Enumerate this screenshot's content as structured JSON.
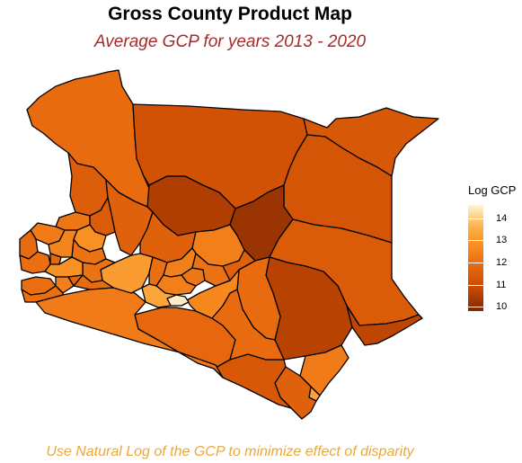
{
  "title": "Gross County Product Map",
  "subtitle": "Average GCP for years 2013 - 2020",
  "caption": "Use Natural Log of the GCP to minimize effect of disparity",
  "legend": {
    "title": "Log GCP",
    "ticks": [
      "14",
      "13",
      "12",
      "11",
      "10"
    ],
    "tick_values": [
      14,
      13,
      12,
      11,
      10
    ],
    "range": [
      9.8,
      14.6
    ],
    "colors": {
      "low": "#7f2704",
      "mid_low": "#c94a02",
      "mid": "#e8690e",
      "mid_high": "#f98f22",
      "high": "#fdb34c",
      "top": "#fff5d6"
    }
  },
  "chart_data": {
    "type": "choropleth",
    "region": "Kenya counties",
    "title": "Gross County Product Map",
    "subtitle": "Average GCP for years 2013 - 2020",
    "fill_variable": "Log GCP",
    "scale_range": [
      9.8,
      14.6
    ]
  },
  "regions": {
    "turkana": 11.9,
    "marsabit": 11.1,
    "mandera": 11.3,
    "wajir": 11.2,
    "samburu": 10.5,
    "isiolo": 10.2,
    "garissa": 11.4,
    "tana_river": 10.6,
    "lamu": 10.7,
    "kilifi": 12.3,
    "mombasa": 13.2,
    "kwale": 11.6,
    "taita_taveta": 11.3,
    "kajiado": 11.8,
    "narok": 12.3,
    "kitui": 11.9,
    "makueni": 11.9,
    "machakos": 12.6,
    "nairobi": 14.5,
    "west_pokot": 11.5,
    "baringo": 11.6,
    "laikipia": 11.6,
    "meru": 12.4,
    "nakuru": 13.1,
    "kiambu": 13.3,
    "nyeri": 12.4,
    "muranga": 12.4,
    "kirinyaga": 12.2,
    "embu": 12.1,
    "tharaka_nithi": 11.6,
    "nyandarua": 12.0,
    "elgeyo_marakwet": 11.4,
    "trans_nzoia": 12.2,
    "uasin_gishu": 12.8,
    "nandi": 12.1,
    "kericho": 12.1,
    "bomet": 11.9,
    "kisumu": 12.8,
    "siaya": 12.0,
    "busia": 11.9,
    "bungoma": 12.3,
    "kakamega": 12.5,
    "vihiga": 11.8,
    "homa_bay": 12.0,
    "migori": 12.0,
    "kisii": 12.4,
    "nyamira": 11.7
  }
}
